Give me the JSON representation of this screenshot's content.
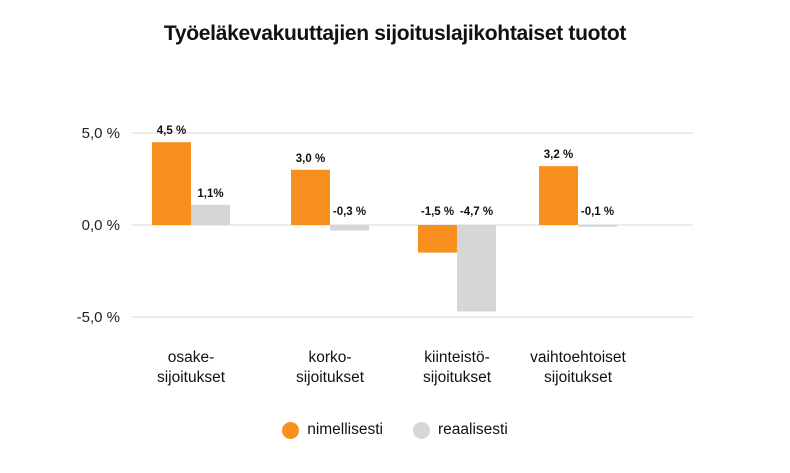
{
  "chart_data": {
    "type": "bar",
    "title": "Työeläkevakuuttajien sijoituslajikohtaiset tuotot",
    "categories": [
      [
        "osake-",
        "sijoitukset"
      ],
      [
        "korko-",
        "sijoitukset"
      ],
      [
        "kiinteistö-",
        "sijoitukset"
      ],
      [
        "vaihtoehtoiset",
        "sijoitukset"
      ]
    ],
    "series": [
      {
        "name": "nimellisesti",
        "color": "#F7901E",
        "values": [
          4.5,
          3.0,
          -1.5,
          3.2
        ],
        "labels": [
          "4,5 %",
          "3,0 %",
          "-1,5 %",
          "3,2 %"
        ]
      },
      {
        "name": "reaalisesti",
        "color": "#D4D6D8",
        "values": [
          1.1,
          -0.3,
          -4.7,
          -0.1
        ],
        "labels": [
          "1,1%",
          "-0,3 %",
          "-4,7 %",
          "-0,1 %"
        ]
      }
    ],
    "yticks": [
      5.0,
      0.0,
      -5.0
    ],
    "ytick_labels": [
      "5,0 %",
      "0,0 %",
      "-5,0 %"
    ],
    "ylim": [
      -5.0,
      5.0
    ],
    "grid": true,
    "legend_position": "bottom"
  }
}
